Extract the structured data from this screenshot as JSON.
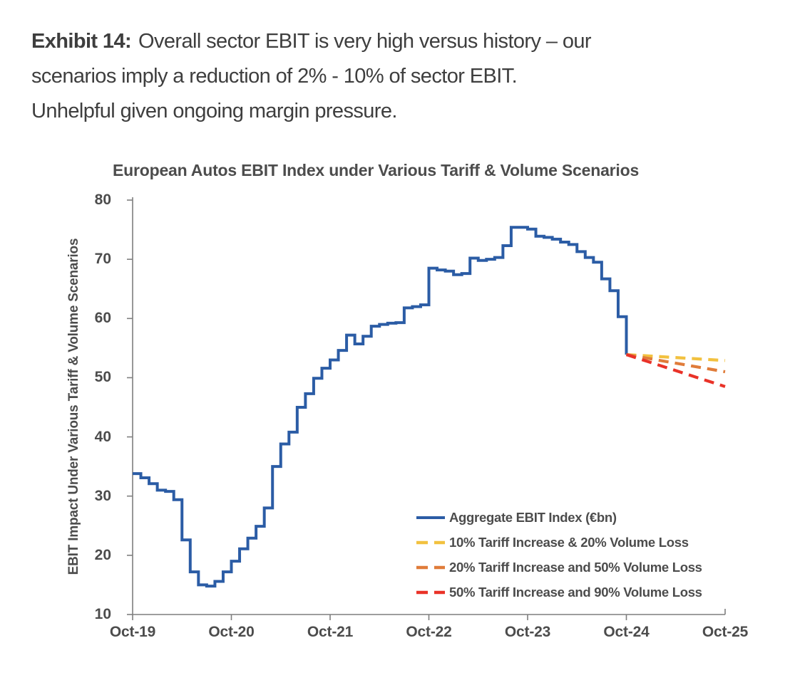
{
  "header": {
    "exhibit_label": "Exhibit 14:",
    "line1": "Overall sector EBIT is very high versus history – our",
    "line2": "scenarios imply a reduction of 2% - 10% of sector EBIT.",
    "line3": "Unhelpful given ongoing margin pressure."
  },
  "chart_data": {
    "type": "line",
    "title": "European Autos EBIT Index under Various Tariff & Volume Scenarios",
    "ylabel": "EBIT Impact Under Various Tariff & Volume Scenarios",
    "xlabel": "",
    "x_tick_labels": [
      "Oct-19",
      "Oct-20",
      "Oct-21",
      "Oct-22",
      "Oct-23",
      "Oct-24",
      "Oct-25"
    ],
    "x_tick_months": [
      0,
      12,
      24,
      36,
      48,
      60,
      72
    ],
    "ylim": [
      10,
      80
    ],
    "y_ticks": [
      10,
      20,
      30,
      40,
      50,
      60,
      70,
      80
    ],
    "grid": false,
    "legend_position": "inside-lower-right",
    "axis_color": "#7f7f7f",
    "text_color": "#4c4c4c",
    "series": [
      {
        "name": "Aggregate EBIT Index (€bn)",
        "color": "#2B5CA5",
        "style": "solid",
        "line_type": "step-monthly",
        "start_month_label": "Oct-19",
        "values": [
          33.8,
          33.1,
          32.1,
          31.0,
          30.8,
          29.4,
          22.6,
          17.2,
          15.0,
          14.8,
          15.6,
          17.2,
          19.0,
          21.1,
          22.9,
          24.9,
          28.0,
          35.0,
          38.8,
          40.8,
          45.0,
          47.3,
          49.9,
          51.6,
          53.0,
          54.6,
          57.2,
          55.7,
          57.0,
          58.7,
          59.0,
          59.2,
          59.3,
          61.8,
          62.0,
          62.3,
          68.5,
          68.2,
          68.0,
          67.4,
          67.6,
          70.2,
          69.8,
          70.0,
          70.3,
          72.3,
          75.4,
          75.4,
          75.1,
          73.9,
          73.7,
          73.4,
          72.9,
          72.5,
          71.3,
          70.3,
          69.5,
          66.7,
          64.7,
          60.3,
          53.9
        ]
      },
      {
        "name": "10% Tariff Increase & 20% Volume Loss",
        "color": "#F2C13F",
        "style": "dashed",
        "x_months": [
          60,
          72
        ],
        "values": [
          53.9,
          52.9
        ]
      },
      {
        "name": "20% Tariff Increase and 50% Volume Loss",
        "color": "#E07C3A",
        "style": "dashed",
        "x_months": [
          60,
          72
        ],
        "values": [
          53.9,
          51.0
        ]
      },
      {
        "name": "50% Tariff Increase and 90% Volume Loss",
        "color": "#E93228",
        "style": "dashed",
        "x_months": [
          60,
          72
        ],
        "values": [
          53.9,
          48.5
        ]
      }
    ]
  }
}
